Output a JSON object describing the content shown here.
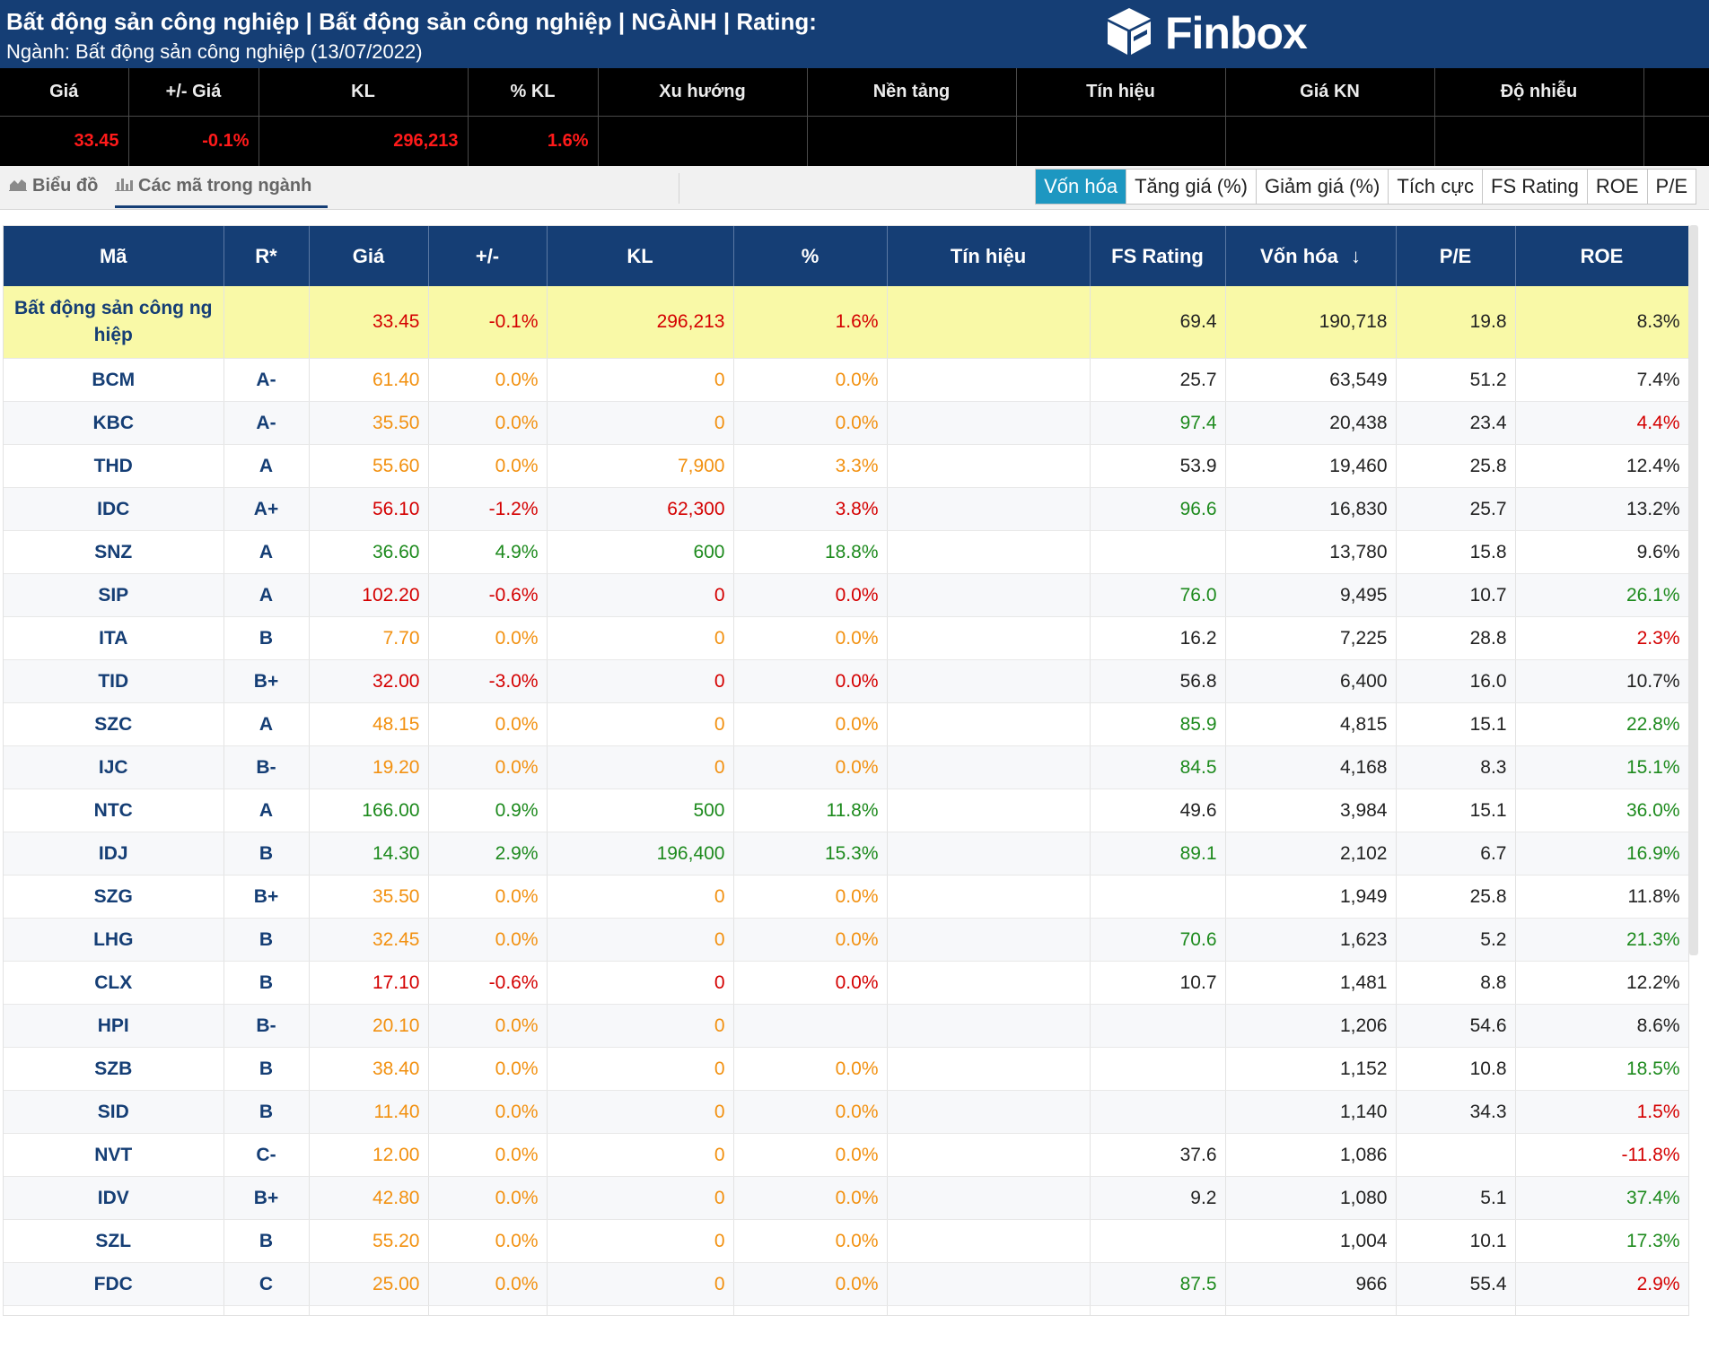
{
  "header": {
    "title": "Bất động sản công nghiệp | Bất động sản công nghiệp | NGÀNH | Rating:",
    "subtitle": "Ngành: Bất động sản công nghiệp (13/07/2022)",
    "logo_text": "Finbox"
  },
  "summary": {
    "headers": [
      "Giá",
      "+/- Giá",
      "KL",
      "% KL",
      "Xu hướng",
      "Nền tảng",
      "Tín hiệu",
      "Giá KN",
      "Độ nhiễu"
    ],
    "values": [
      "33.45",
      "-0.1%",
      "296,213",
      "1.6%",
      "",
      "",
      "",
      "",
      ""
    ]
  },
  "tabs": {
    "chart_label": "Biểu đồ",
    "stocks_label": "Các mã trong ngành",
    "sort_buttons": [
      "Vốn hóa",
      "Tăng giá (%)",
      "Giảm giá (%)",
      "Tích cực",
      "FS Rating",
      "ROE",
      "P/E"
    ],
    "active_sort": "Vốn hóa"
  },
  "table": {
    "headers": [
      "Mã",
      "R*",
      "Giá",
      "+/-",
      "KL",
      "%",
      "Tín hiệu",
      "FS Rating",
      "Vốn hóa",
      "P/E",
      "ROE"
    ],
    "sort_indicator": "↓",
    "industry_row": {
      "symbol": "Bất động sản công ng hiệp",
      "rating": "",
      "price": "33.45",
      "change": "-0.1%",
      "volume": "296,213",
      "pct": "1.6%",
      "signal": "",
      "fs_rating": "69.4",
      "market_cap": "190,718",
      "pe": "19.8",
      "roe": "8.3%"
    },
    "rows": [
      {
        "symbol": "BCM",
        "rating": "A-",
        "price": "61.40",
        "change": "0.0%",
        "volume": "0",
        "pct": "0.0%",
        "signal": "",
        "fs_rating": "25.7",
        "market_cap": "63,549",
        "pe": "51.2",
        "roe": "7.4%",
        "price_color": "ref",
        "fs_color": "neutral",
        "roe_color": "neutral"
      },
      {
        "symbol": "KBC",
        "rating": "A-",
        "price": "35.50",
        "change": "0.0%",
        "volume": "0",
        "pct": "0.0%",
        "signal": "",
        "fs_rating": "97.4",
        "market_cap": "20,438",
        "pe": "23.4",
        "roe": "4.4%",
        "price_color": "ref",
        "fs_color": "up",
        "roe_color": "down"
      },
      {
        "symbol": "THD",
        "rating": "A",
        "price": "55.60",
        "change": "0.0%",
        "volume": "7,900",
        "pct": "3.3%",
        "signal": "",
        "fs_rating": "53.9",
        "market_cap": "19,460",
        "pe": "25.8",
        "roe": "12.4%",
        "price_color": "ref",
        "fs_color": "neutral",
        "roe_color": "neutral"
      },
      {
        "symbol": "IDC",
        "rating": "A+",
        "price": "56.10",
        "change": "-1.2%",
        "volume": "62,300",
        "pct": "3.8%",
        "signal": "",
        "fs_rating": "96.6",
        "market_cap": "16,830",
        "pe": "25.7",
        "roe": "13.2%",
        "price_color": "down",
        "fs_color": "up",
        "roe_color": "neutral"
      },
      {
        "symbol": "SNZ",
        "rating": "A",
        "price": "36.60",
        "change": "4.9%",
        "volume": "600",
        "pct": "18.8%",
        "signal": "",
        "fs_rating": "",
        "market_cap": "13,780",
        "pe": "15.8",
        "roe": "9.6%",
        "price_color": "up",
        "fs_color": "neutral",
        "roe_color": "neutral"
      },
      {
        "symbol": "SIP",
        "rating": "A",
        "price": "102.20",
        "change": "-0.6%",
        "volume": "0",
        "pct": "0.0%",
        "signal": "",
        "fs_rating": "76.0",
        "market_cap": "9,495",
        "pe": "10.7",
        "roe": "26.1%",
        "price_color": "down",
        "fs_color": "up",
        "roe_color": "up"
      },
      {
        "symbol": "ITA",
        "rating": "B",
        "price": "7.70",
        "change": "0.0%",
        "volume": "0",
        "pct": "0.0%",
        "signal": "",
        "fs_rating": "16.2",
        "market_cap": "7,225",
        "pe": "28.8",
        "roe": "2.3%",
        "price_color": "ref",
        "fs_color": "neutral",
        "roe_color": "down"
      },
      {
        "symbol": "TID",
        "rating": "B+",
        "price": "32.00",
        "change": "-3.0%",
        "volume": "0",
        "pct": "0.0%",
        "signal": "",
        "fs_rating": "56.8",
        "market_cap": "6,400",
        "pe": "16.0",
        "roe": "10.7%",
        "price_color": "down",
        "fs_color": "neutral",
        "roe_color": "neutral"
      },
      {
        "symbol": "SZC",
        "rating": "A",
        "price": "48.15",
        "change": "0.0%",
        "volume": "0",
        "pct": "0.0%",
        "signal": "",
        "fs_rating": "85.9",
        "market_cap": "4,815",
        "pe": "15.1",
        "roe": "22.8%",
        "price_color": "ref",
        "fs_color": "up",
        "roe_color": "up"
      },
      {
        "symbol": "IJC",
        "rating": "B-",
        "price": "19.20",
        "change": "0.0%",
        "volume": "0",
        "pct": "0.0%",
        "signal": "",
        "fs_rating": "84.5",
        "market_cap": "4,168",
        "pe": "8.3",
        "roe": "15.1%",
        "price_color": "ref",
        "fs_color": "up",
        "roe_color": "up"
      },
      {
        "symbol": "NTC",
        "rating": "A",
        "price": "166.00",
        "change": "0.9%",
        "volume": "500",
        "pct": "11.8%",
        "signal": "",
        "fs_rating": "49.6",
        "market_cap": "3,984",
        "pe": "15.1",
        "roe": "36.0%",
        "price_color": "up",
        "fs_color": "neutral",
        "roe_color": "up"
      },
      {
        "symbol": "IDJ",
        "rating": "B",
        "price": "14.30",
        "change": "2.9%",
        "volume": "196,400",
        "pct": "15.3%",
        "signal": "",
        "fs_rating": "89.1",
        "market_cap": "2,102",
        "pe": "6.7",
        "roe": "16.9%",
        "price_color": "up",
        "fs_color": "up",
        "roe_color": "up"
      },
      {
        "symbol": "SZG",
        "rating": "B+",
        "price": "35.50",
        "change": "0.0%",
        "volume": "0",
        "pct": "0.0%",
        "signal": "",
        "fs_rating": "",
        "market_cap": "1,949",
        "pe": "25.8",
        "roe": "11.8%",
        "price_color": "ref",
        "fs_color": "neutral",
        "roe_color": "neutral"
      },
      {
        "symbol": "LHG",
        "rating": "B",
        "price": "32.45",
        "change": "0.0%",
        "volume": "0",
        "pct": "0.0%",
        "signal": "",
        "fs_rating": "70.6",
        "market_cap": "1,623",
        "pe": "5.2",
        "roe": "21.3%",
        "price_color": "ref",
        "fs_color": "up",
        "roe_color": "up"
      },
      {
        "symbol": "CLX",
        "rating": "B",
        "price": "17.10",
        "change": "-0.6%",
        "volume": "0",
        "pct": "0.0%",
        "signal": "",
        "fs_rating": "10.7",
        "market_cap": "1,481",
        "pe": "8.8",
        "roe": "12.2%",
        "price_color": "down",
        "fs_color": "neutral",
        "roe_color": "neutral"
      },
      {
        "symbol": "HPI",
        "rating": "B-",
        "price": "20.10",
        "change": "0.0%",
        "volume": "0",
        "pct": "",
        "signal": "",
        "fs_rating": "",
        "market_cap": "1,206",
        "pe": "54.6",
        "roe": "8.6%",
        "price_color": "ref",
        "fs_color": "neutral",
        "roe_color": "neutral"
      },
      {
        "symbol": "SZB",
        "rating": "B",
        "price": "38.40",
        "change": "0.0%",
        "volume": "0",
        "pct": "0.0%",
        "signal": "",
        "fs_rating": "",
        "market_cap": "1,152",
        "pe": "10.8",
        "roe": "18.5%",
        "price_color": "ref",
        "fs_color": "neutral",
        "roe_color": "up"
      },
      {
        "symbol": "SID",
        "rating": "B",
        "price": "11.40",
        "change": "0.0%",
        "volume": "0",
        "pct": "0.0%",
        "signal": "",
        "fs_rating": "",
        "market_cap": "1,140",
        "pe": "34.3",
        "roe": "1.5%",
        "price_color": "ref",
        "fs_color": "neutral",
        "roe_color": "down"
      },
      {
        "symbol": "NVT",
        "rating": "C-",
        "price": "12.00",
        "change": "0.0%",
        "volume": "0",
        "pct": "0.0%",
        "signal": "",
        "fs_rating": "37.6",
        "market_cap": "1,086",
        "pe": "",
        "roe": "-11.8%",
        "price_color": "ref",
        "fs_color": "neutral",
        "roe_color": "down"
      },
      {
        "symbol": "IDV",
        "rating": "B+",
        "price": "42.80",
        "change": "0.0%",
        "volume": "0",
        "pct": "0.0%",
        "signal": "",
        "fs_rating": "9.2",
        "market_cap": "1,080",
        "pe": "5.1",
        "roe": "37.4%",
        "price_color": "ref",
        "fs_color": "neutral",
        "roe_color": "up"
      },
      {
        "symbol": "SZL",
        "rating": "B",
        "price": "55.20",
        "change": "0.0%",
        "volume": "0",
        "pct": "0.0%",
        "signal": "",
        "fs_rating": "",
        "market_cap": "1,004",
        "pe": "10.1",
        "roe": "17.3%",
        "price_color": "ref",
        "fs_color": "neutral",
        "roe_color": "up"
      },
      {
        "symbol": "FDC",
        "rating": "C",
        "price": "25.00",
        "change": "0.0%",
        "volume": "0",
        "pct": "0.0%",
        "signal": "",
        "fs_rating": "87.5",
        "market_cap": "966",
        "pe": "55.4",
        "roe": "2.9%",
        "price_color": "ref",
        "fs_color": "up",
        "roe_color": "down"
      },
      {
        "symbol": "",
        "rating": "",
        "price": "",
        "change": "",
        "volume": "",
        "pct": "",
        "signal": "",
        "fs_rating": "",
        "market_cap": "",
        "pe": "",
        "roe": "",
        "price_color": "ref",
        "fs_color": "neutral",
        "roe_color": "neutral"
      }
    ]
  },
  "colors": {
    "header_bg": "#153e75",
    "summary_bg": "#000000",
    "summary_value": "#ff1a1a",
    "up": "#1d8a1d",
    "down": "#d40000",
    "reference": "#f29111",
    "industry_row_bg": "#f9f9a7",
    "active_sort_bg": "#1d97c1"
  }
}
